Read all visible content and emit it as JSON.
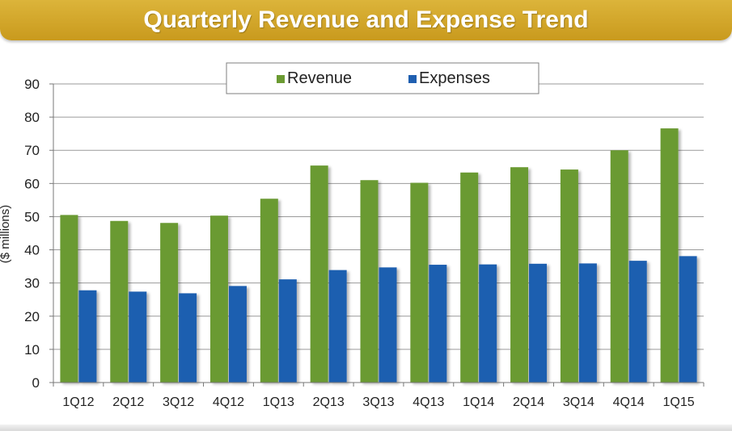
{
  "header": {
    "title": "Quarterly Revenue and Expense Trend"
  },
  "chart_data": {
    "type": "bar",
    "title": "Quarterly Revenue and Expense Trend",
    "xlabel": "",
    "ylabel": "($ millions)",
    "ylim": [
      0,
      90
    ],
    "yticks": [
      0,
      10,
      20,
      30,
      40,
      50,
      60,
      70,
      80,
      90
    ],
    "grid": true,
    "legend_position": "top-center",
    "categories": [
      "1Q12",
      "2Q12",
      "3Q12",
      "4Q12",
      "1Q13",
      "2Q13",
      "3Q13",
      "4Q13",
      "1Q14",
      "2Q14",
      "3Q14",
      "4Q14",
      "1Q15"
    ],
    "series": [
      {
        "name": "Revenue",
        "color": "#6b9a32",
        "values": [
          50.5,
          48.7,
          48.1,
          50.3,
          55.4,
          65.4,
          61.0,
          60.2,
          63.3,
          64.9,
          64.2,
          70.0,
          76.6
        ]
      },
      {
        "name": "Expenses",
        "color": "#1f5fb0",
        "values": [
          27.8,
          27.4,
          26.9,
          29.1,
          31.1,
          33.9,
          34.7,
          35.5,
          35.6,
          35.8,
          35.9,
          36.7,
          38.1
        ]
      }
    ]
  }
}
